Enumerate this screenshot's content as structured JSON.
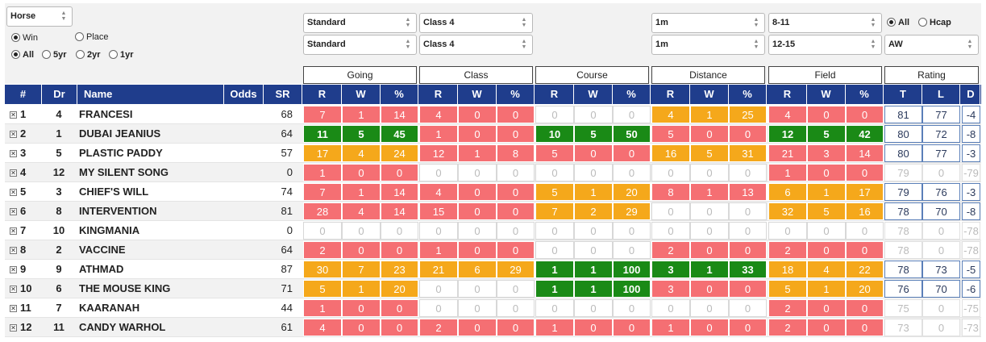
{
  "filters": {
    "left_select": "Horse",
    "win_radio": "Win",
    "place_radio": "Place",
    "period": [
      "All",
      "5yr",
      "2yr",
      "1yr"
    ],
    "going_1": "Standard",
    "going_2": "Standard",
    "class_1": "Class 4",
    "class_2": "Class 4",
    "distance_1": "1m",
    "distance_2": "1m",
    "field_1": "8-11",
    "field_2": "12-15",
    "race_type_all": "All",
    "race_type_hcap": "Hcap",
    "surface": "AW"
  },
  "groups": [
    "Going",
    "Class",
    "Course",
    "Distance",
    "Field",
    "Rating"
  ],
  "headers": {
    "rank": "#",
    "dr": "Dr",
    "name": "Name",
    "odds": "Odds",
    "sr": "SR",
    "stat": [
      "R",
      "W",
      "%"
    ],
    "rating": [
      "T",
      "L",
      "D"
    ]
  },
  "rows": [
    {
      "rank": "1",
      "dr": "4",
      "name": "FRANCESI",
      "sr": "68",
      "stats": [
        [
          7,
          1,
          14,
          "red"
        ],
        [
          4,
          0,
          0,
          "red"
        ],
        [
          0,
          0,
          0,
          "zero"
        ],
        [
          4,
          1,
          25,
          "orange"
        ],
        [
          4,
          0,
          0,
          "red"
        ]
      ],
      "rating": [
        "81",
        "77",
        "-4"
      ],
      "dim": false
    },
    {
      "rank": "2",
      "dr": "1",
      "name": "DUBAI JEANIUS",
      "sr": "64",
      "stats": [
        [
          11,
          5,
          45,
          "green"
        ],
        [
          1,
          0,
          0,
          "red"
        ],
        [
          10,
          5,
          50,
          "green"
        ],
        [
          5,
          0,
          0,
          "red"
        ],
        [
          12,
          5,
          42,
          "green"
        ]
      ],
      "rating": [
        "80",
        "72",
        "-8"
      ],
      "dim": false
    },
    {
      "rank": "3",
      "dr": "5",
      "name": "PLASTIC PADDY",
      "sr": "57",
      "stats": [
        [
          17,
          4,
          24,
          "orange"
        ],
        [
          12,
          1,
          8,
          "red"
        ],
        [
          5,
          0,
          0,
          "red"
        ],
        [
          16,
          5,
          31,
          "orange"
        ],
        [
          21,
          3,
          14,
          "red"
        ]
      ],
      "rating": [
        "80",
        "77",
        "-3"
      ],
      "dim": false
    },
    {
      "rank": "4",
      "dr": "12",
      "name": "MY SILENT SONG",
      "sr": "0",
      "stats": [
        [
          1,
          0,
          0,
          "red"
        ],
        [
          0,
          0,
          0,
          "zero"
        ],
        [
          0,
          0,
          0,
          "zero"
        ],
        [
          0,
          0,
          0,
          "zero"
        ],
        [
          1,
          0,
          0,
          "red"
        ]
      ],
      "rating": [
        "79",
        "0",
        "-79"
      ],
      "dim": true
    },
    {
      "rank": "5",
      "dr": "3",
      "name": "CHIEF'S WILL",
      "sr": "74",
      "stats": [
        [
          7,
          1,
          14,
          "red"
        ],
        [
          4,
          0,
          0,
          "red"
        ],
        [
          5,
          1,
          20,
          "orange"
        ],
        [
          8,
          1,
          13,
          "red"
        ],
        [
          6,
          1,
          17,
          "orange"
        ]
      ],
      "rating": [
        "79",
        "76",
        "-3"
      ],
      "dim": false
    },
    {
      "rank": "6",
      "dr": "8",
      "name": "INTERVENTION",
      "sr": "81",
      "stats": [
        [
          28,
          4,
          14,
          "red"
        ],
        [
          15,
          0,
          0,
          "red"
        ],
        [
          7,
          2,
          29,
          "orange"
        ],
        [
          0,
          0,
          0,
          "zero"
        ],
        [
          32,
          5,
          16,
          "orange"
        ]
      ],
      "rating": [
        "78",
        "70",
        "-8"
      ],
      "dim": false
    },
    {
      "rank": "7",
      "dr": "10",
      "name": "KINGMANIA",
      "sr": "0",
      "stats": [
        [
          0,
          0,
          0,
          "zero"
        ],
        [
          0,
          0,
          0,
          "zero"
        ],
        [
          0,
          0,
          0,
          "zero"
        ],
        [
          0,
          0,
          0,
          "zero"
        ],
        [
          0,
          0,
          0,
          "zero"
        ]
      ],
      "rating": [
        "78",
        "0",
        "-78"
      ],
      "dim": true
    },
    {
      "rank": "8",
      "dr": "2",
      "name": "VACCINE",
      "sr": "64",
      "stats": [
        [
          2,
          0,
          0,
          "red"
        ],
        [
          1,
          0,
          0,
          "red"
        ],
        [
          0,
          0,
          0,
          "zero"
        ],
        [
          2,
          0,
          0,
          "red"
        ],
        [
          2,
          0,
          0,
          "red"
        ]
      ],
      "rating": [
        "78",
        "0",
        "-78"
      ],
      "dim": true
    },
    {
      "rank": "9",
      "dr": "9",
      "name": "ATHMAD",
      "sr": "87",
      "stats": [
        [
          30,
          7,
          23,
          "orange"
        ],
        [
          21,
          6,
          29,
          "orange"
        ],
        [
          1,
          1,
          100,
          "green"
        ],
        [
          3,
          1,
          33,
          "green"
        ],
        [
          18,
          4,
          22,
          "orange"
        ]
      ],
      "rating": [
        "78",
        "73",
        "-5"
      ],
      "dim": false
    },
    {
      "rank": "10",
      "dr": "6",
      "name": "THE MOUSE KING",
      "sr": "71",
      "stats": [
        [
          5,
          1,
          20,
          "orange"
        ],
        [
          0,
          0,
          0,
          "zero"
        ],
        [
          1,
          1,
          100,
          "green"
        ],
        [
          3,
          0,
          0,
          "red"
        ],
        [
          5,
          1,
          20,
          "orange"
        ]
      ],
      "rating": [
        "76",
        "70",
        "-6"
      ],
      "dim": false
    },
    {
      "rank": "11",
      "dr": "7",
      "name": "KAARANAH",
      "sr": "44",
      "stats": [
        [
          1,
          0,
          0,
          "red"
        ],
        [
          0,
          0,
          0,
          "zero"
        ],
        [
          0,
          0,
          0,
          "zero"
        ],
        [
          0,
          0,
          0,
          "zero"
        ],
        [
          2,
          0,
          0,
          "red"
        ]
      ],
      "rating": [
        "75",
        "0",
        "-75"
      ],
      "dim": true
    },
    {
      "rank": "12",
      "dr": "11",
      "name": "CANDY WARHOL",
      "sr": "61",
      "stats": [
        [
          4,
          0,
          0,
          "red"
        ],
        [
          2,
          0,
          0,
          "red"
        ],
        [
          1,
          0,
          0,
          "red"
        ],
        [
          1,
          0,
          0,
          "red"
        ],
        [
          2,
          0,
          0,
          "red"
        ]
      ],
      "rating": [
        "73",
        "0",
        "-73"
      ],
      "dim": true
    }
  ]
}
